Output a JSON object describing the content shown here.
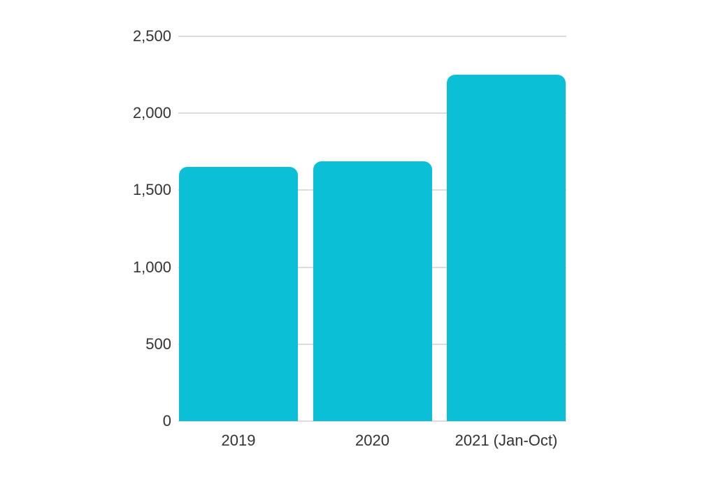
{
  "chart_data": {
    "type": "bar",
    "categories": [
      "2019",
      "2020",
      "2021 (Jan-Oct)"
    ],
    "values": [
      1650,
      1690,
      2250
    ],
    "title": "",
    "xlabel": "",
    "ylabel": "",
    "ylim": [
      0,
      2500
    ],
    "y_ticks": [
      0,
      500,
      1000,
      1500,
      2000,
      2500
    ],
    "y_tick_labels": [
      "0",
      "500",
      "1,000",
      "1,500",
      "2,000",
      "2,500"
    ],
    "grid": "horizontal",
    "legend": "none",
    "bar_shape": "rounded-top",
    "bar_color": "#0bc0d6",
    "gridline_color": "#dcdcdc",
    "text_color": "#333333",
    "background_color": "#ffffff"
  }
}
